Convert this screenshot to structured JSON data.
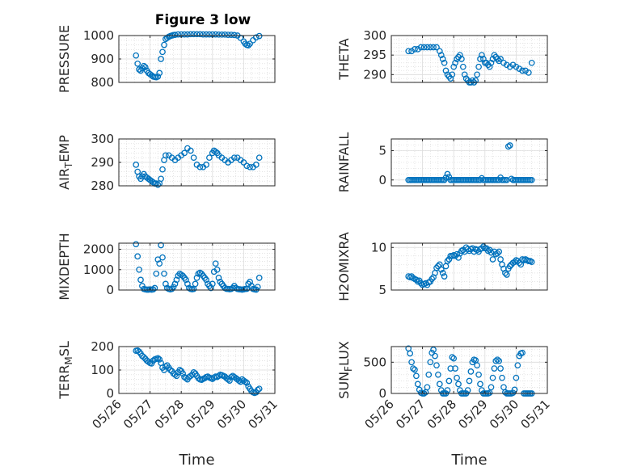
{
  "title": "Figure 3 low",
  "marker_color": "#0072BD",
  "chart_data": [
    {
      "type": "scatter",
      "marker": "circle-open",
      "ylabel": "PRESSURE",
      "ylim": [
        800,
        1000
      ],
      "yticks": [
        800,
        900,
        1000
      ],
      "xlim": [
        0,
        5
      ],
      "xticks": [
        "05/26",
        "05/27",
        "05/28",
        "05/29",
        "05/30",
        "05/31"
      ],
      "xlabel": "",
      "grid": true,
      "minor_grid": true,
      "x": [
        0.55,
        0.6,
        0.65,
        0.7,
        0.75,
        0.8,
        0.85,
        0.9,
        0.95,
        1.0,
        1.05,
        1.1,
        1.15,
        1.2,
        1.25,
        1.3,
        1.35,
        1.4,
        1.45,
        1.5,
        1.55,
        1.6,
        1.65,
        1.7,
        1.75,
        1.8,
        1.9,
        2.0,
        2.1,
        2.2,
        2.3,
        2.4,
        2.5,
        2.6,
        2.7,
        2.8,
        2.9,
        3.0,
        3.1,
        3.2,
        3.3,
        3.4,
        3.5,
        3.6,
        3.7,
        3.8,
        3.9,
        4.0,
        4.05,
        4.1,
        4.15,
        4.2,
        4.3,
        4.4,
        4.5
      ],
      "y": [
        915,
        880,
        855,
        850,
        860,
        870,
        865,
        850,
        840,
        835,
        830,
        825,
        823,
        822,
        825,
        840,
        900,
        930,
        960,
        985,
        990,
        995,
        998,
        1000,
        1002,
        1003,
        1005,
        1005,
        1005,
        1005,
        1006,
        1006,
        1006,
        1006,
        1005,
        1005,
        1005,
        1005,
        1005,
        1004,
        1004,
        1004,
        1003,
        1003,
        1002,
        1000,
        990,
        975,
        965,
        960,
        958,
        965,
        980,
        992,
        998
      ]
    },
    {
      "type": "scatter",
      "marker": "circle-open",
      "ylabel": "THETA",
      "ylim": [
        288,
        300
      ],
      "yticks": [
        290,
        295,
        300
      ],
      "xlim": [
        0,
        5
      ],
      "xticks": [
        "05/26",
        "05/27",
        "05/28",
        "05/29",
        "05/30",
        "05/31"
      ],
      "xlabel": "",
      "grid": true,
      "minor_grid": true,
      "x": [
        0.55,
        0.65,
        0.75,
        0.85,
        0.95,
        1.05,
        1.15,
        1.25,
        1.35,
        1.45,
        1.55,
        1.6,
        1.65,
        1.7,
        1.75,
        1.8,
        1.85,
        1.9,
        1.95,
        2.0,
        2.05,
        2.1,
        2.15,
        2.2,
        2.25,
        2.3,
        2.35,
        2.4,
        2.45,
        2.5,
        2.55,
        2.6,
        2.65,
        2.7,
        2.75,
        2.8,
        2.85,
        2.9,
        2.95,
        3.0,
        3.05,
        3.1,
        3.15,
        3.2,
        3.25,
        3.3,
        3.35,
        3.4,
        3.45,
        3.5,
        3.6,
        3.7,
        3.8,
        3.9,
        4.0,
        4.1,
        4.2,
        4.3,
        4.4,
        4.5
      ],
      "y": [
        296,
        296,
        296.5,
        296.5,
        297,
        297,
        297,
        297,
        297,
        297,
        296,
        295,
        294,
        293,
        291,
        290,
        289.5,
        289,
        290,
        292,
        293,
        294,
        294.5,
        295,
        294,
        292,
        290,
        289,
        288.5,
        288,
        288,
        288.5,
        288,
        288.5,
        290,
        292,
        294,
        295,
        294,
        293,
        293,
        292.5,
        292,
        293,
        294,
        295,
        294.5,
        294,
        293.5,
        294,
        293,
        292.5,
        292,
        292.5,
        292,
        291.5,
        291,
        291,
        290.5,
        293
      ]
    },
    {
      "type": "scatter",
      "marker": "circle-open",
      "ylabel": "AIR_T_EMP",
      "ylim": [
        280,
        300
      ],
      "yticks": [
        280,
        290,
        300
      ],
      "xlim": [
        0,
        5
      ],
      "xticks": [
        "05/26",
        "05/27",
        "05/28",
        "05/29",
        "05/30",
        "05/31"
      ],
      "xlabel": "",
      "grid": true,
      "minor_grid": true,
      "x": [
        0.55,
        0.6,
        0.65,
        0.7,
        0.75,
        0.8,
        0.85,
        0.9,
        0.95,
        1.0,
        1.05,
        1.1,
        1.15,
        1.2,
        1.25,
        1.3,
        1.35,
        1.4,
        1.45,
        1.5,
        1.6,
        1.7,
        1.8,
        1.9,
        2.0,
        2.1,
        2.2,
        2.3,
        2.4,
        2.5,
        2.6,
        2.7,
        2.8,
        2.9,
        3.0,
        3.05,
        3.1,
        3.15,
        3.2,
        3.3,
        3.4,
        3.5,
        3.6,
        3.7,
        3.8,
        3.9,
        4.0,
        4.1,
        4.2,
        4.3,
        4.4,
        4.5
      ],
      "y": [
        289,
        286,
        284,
        283,
        284,
        285,
        284,
        283.5,
        283,
        282.5,
        282,
        281.5,
        281,
        281,
        280.5,
        281,
        283,
        287,
        291,
        293,
        293,
        292,
        291,
        292,
        293,
        294,
        296,
        295,
        292,
        289,
        288,
        288,
        289,
        292,
        294,
        295,
        294.5,
        294,
        293,
        292,
        291,
        290,
        291,
        292,
        292,
        291,
        290,
        288.5,
        288,
        288,
        289,
        292
      ]
    },
    {
      "type": "scatter",
      "marker": "circle-open",
      "ylabel": "RAINFALL",
      "ylim": [
        -1,
        7
      ],
      "yticks": [
        0,
        5
      ],
      "xlim": [
        0,
        5
      ],
      "xticks": [
        "05/26",
        "05/27",
        "05/28",
        "05/29",
        "05/30",
        "05/31"
      ],
      "xlabel": "",
      "grid": true,
      "minor_grid": true,
      "x": [
        0.55,
        0.6,
        0.65,
        0.7,
        0.75,
        0.8,
        0.85,
        0.9,
        0.95,
        1.0,
        1.05,
        1.1,
        1.15,
        1.2,
        1.25,
        1.3,
        1.35,
        1.4,
        1.45,
        1.5,
        1.55,
        1.6,
        1.65,
        1.7,
        1.75,
        1.8,
        1.85,
        1.9,
        1.95,
        2.0,
        2.05,
        2.1,
        2.15,
        2.2,
        2.25,
        2.3,
        2.35,
        2.4,
        2.45,
        2.5,
        2.55,
        2.6,
        2.65,
        2.7,
        2.75,
        2.8,
        2.85,
        2.9,
        2.95,
        3.0,
        3.05,
        3.1,
        3.15,
        3.2,
        3.25,
        3.3,
        3.35,
        3.4,
        3.45,
        3.5,
        3.55,
        3.6,
        3.65,
        3.7,
        3.75,
        3.8,
        3.85,
        3.9,
        3.95,
        4.0,
        4.05,
        4.1,
        4.15,
        4.2,
        4.25,
        4.3,
        4.35,
        4.4,
        4.45,
        4.5
      ],
      "y": [
        0,
        0,
        0,
        0,
        0,
        0,
        0,
        0,
        0,
        0,
        0,
        0,
        0,
        0,
        0,
        0,
        0,
        0,
        0,
        0,
        0,
        0,
        0,
        0,
        0.4,
        1.0,
        0.5,
        0,
        0,
        0,
        0,
        0,
        0,
        0,
        0,
        0,
        0,
        0,
        0,
        0,
        0,
        0,
        0,
        0,
        0,
        0,
        0,
        0.3,
        0,
        0,
        0,
        0,
        0,
        0,
        0,
        0,
        0,
        0,
        0,
        0.4,
        0,
        0,
        0,
        0,
        5.7,
        5.9,
        0.2,
        0,
        0,
        0,
        0,
        0,
        0,
        0,
        0,
        0,
        0,
        0,
        0,
        0
      ]
    },
    {
      "type": "scatter",
      "marker": "circle-open",
      "ylabel": "MIXDEPTH",
      "ylim": [
        0,
        2300
      ],
      "yticks": [
        0,
        1000,
        2000
      ],
      "xlim": [
        0,
        5
      ],
      "xticks": [
        "05/26",
        "05/27",
        "05/28",
        "05/29",
        "05/30",
        "05/31"
      ],
      "xlabel": "",
      "grid": true,
      "minor_grid": true,
      "x": [
        0.55,
        0.6,
        0.65,
        0.7,
        0.75,
        0.8,
        0.85,
        0.9,
        0.95,
        1.0,
        1.05,
        1.1,
        1.15,
        1.2,
        1.25,
        1.3,
        1.35,
        1.4,
        1.45,
        1.5,
        1.55,
        1.6,
        1.65,
        1.7,
        1.75,
        1.8,
        1.85,
        1.9,
        1.95,
        2.0,
        2.05,
        2.1,
        2.15,
        2.2,
        2.25,
        2.3,
        2.35,
        2.4,
        2.45,
        2.5,
        2.55,
        2.6,
        2.65,
        2.7,
        2.75,
        2.8,
        2.85,
        2.9,
        2.95,
        3.0,
        3.05,
        3.1,
        3.15,
        3.2,
        3.25,
        3.3,
        3.35,
        3.4,
        3.45,
        3.5,
        3.55,
        3.6,
        3.65,
        3.7,
        3.75,
        3.8,
        3.85,
        3.9,
        3.95,
        4.0,
        4.05,
        4.1,
        4.15,
        4.2,
        4.25,
        4.3,
        4.35,
        4.4,
        4.45,
        4.5
      ],
      "y": [
        2250,
        1650,
        1000,
        500,
        200,
        50,
        30,
        20,
        20,
        30,
        20,
        30,
        100,
        800,
        1500,
        1300,
        2200,
        1600,
        800,
        300,
        100,
        50,
        30,
        50,
        150,
        300,
        500,
        700,
        800,
        750,
        700,
        600,
        500,
        300,
        100,
        50,
        40,
        50,
        300,
        600,
        800,
        850,
        800,
        700,
        600,
        500,
        300,
        200,
        100,
        300,
        900,
        1300,
        1000,
        600,
        400,
        300,
        200,
        100,
        60,
        50,
        40,
        50,
        100,
        200,
        100,
        50,
        40,
        30,
        20,
        30,
        50,
        60,
        300,
        400,
        200,
        50,
        30,
        20,
        150,
        600
      ]
    },
    {
      "type": "scatter",
      "marker": "circle-open",
      "ylabel": "H2OMIXRA",
      "ylim": [
        5,
        10.5
      ],
      "yticks": [
        5,
        10
      ],
      "xlim": [
        0,
        5
      ],
      "xticks": [
        "05/26",
        "05/27",
        "05/28",
        "05/29",
        "05/30",
        "05/31"
      ],
      "xlabel": "",
      "grid": true,
      "minor_grid": true,
      "x": [
        0.55,
        0.6,
        0.65,
        0.7,
        0.75,
        0.8,
        0.85,
        0.9,
        0.95,
        1.0,
        1.05,
        1.1,
        1.15,
        1.2,
        1.25,
        1.3,
        1.35,
        1.4,
        1.45,
        1.5,
        1.55,
        1.6,
        1.65,
        1.7,
        1.75,
        1.8,
        1.85,
        1.9,
        1.95,
        2.0,
        2.05,
        2.1,
        2.15,
        2.2,
        2.25,
        2.3,
        2.35,
        2.4,
        2.45,
        2.5,
        2.55,
        2.6,
        2.65,
        2.7,
        2.75,
        2.8,
        2.85,
        2.9,
        2.95,
        3.0,
        3.05,
        3.1,
        3.15,
        3.2,
        3.25,
        3.3,
        3.35,
        3.4,
        3.45,
        3.5,
        3.55,
        3.6,
        3.65,
        3.7,
        3.75,
        3.8,
        3.85,
        3.9,
        3.95,
        4.0,
        4.05,
        4.1,
        4.15,
        4.2,
        4.25,
        4.3,
        4.35,
        4.4,
        4.45,
        4.5
      ],
      "y": [
        6.6,
        6.5,
        6.6,
        6.4,
        6.3,
        6.2,
        6.0,
        6.1,
        5.8,
        5.6,
        5.7,
        5.8,
        5.6,
        5.9,
        6.0,
        6.3,
        6.5,
        7.0,
        7.6,
        7.8,
        8.0,
        7.4,
        7.0,
        6.6,
        7.8,
        8.4,
        8.6,
        9.0,
        9.0,
        9.1,
        9.0,
        9.2,
        8.8,
        9.3,
        9.6,
        9.7,
        9.5,
        10.0,
        9.8,
        9.6,
        9.8,
        9.9,
        9.5,
        9.8,
        9.7,
        9.5,
        9.8,
        9.9,
        10.1,
        9.9,
        9.9,
        9.6,
        9.7,
        9.4,
        8.6,
        9.5,
        9.2,
        9.3,
        9.5,
        8.6,
        8.0,
        7.5,
        7.0,
        6.8,
        7.5,
        7.8,
        8.0,
        8.2,
        8.3,
        8.5,
        8.4,
        8.2,
        8.0,
        8.6,
        8.5,
        8.6,
        8.5,
        8.4,
        8.4,
        8.3
      ]
    },
    {
      "type": "scatter",
      "marker": "circle-open",
      "ylabel": "TERR_M_SL",
      "ylim": [
        0,
        200
      ],
      "yticks": [
        0,
        100,
        200
      ],
      "xlim": [
        0,
        5
      ],
      "xticks": [
        "05/26",
        "05/27",
        "05/28",
        "05/29",
        "05/30",
        "05/31"
      ],
      "xlabel": "Time",
      "grid": true,
      "minor_grid": true,
      "x": [
        0.55,
        0.6,
        0.65,
        0.7,
        0.75,
        0.8,
        0.85,
        0.9,
        0.95,
        1.0,
        1.05,
        1.1,
        1.15,
        1.2,
        1.25,
        1.3,
        1.35,
        1.4,
        1.45,
        1.5,
        1.55,
        1.6,
        1.65,
        1.7,
        1.75,
        1.8,
        1.85,
        1.9,
        1.95,
        2.0,
        2.05,
        2.1,
        2.15,
        2.2,
        2.25,
        2.3,
        2.35,
        2.4,
        2.45,
        2.5,
        2.55,
        2.6,
        2.65,
        2.7,
        2.75,
        2.8,
        2.85,
        2.9,
        2.95,
        3.0,
        3.05,
        3.1,
        3.15,
        3.2,
        3.25,
        3.3,
        3.35,
        3.4,
        3.45,
        3.5,
        3.55,
        3.6,
        3.65,
        3.7,
        3.75,
        3.8,
        3.85,
        3.9,
        3.95,
        4.0,
        4.05,
        4.1,
        4.15,
        4.2,
        4.25,
        4.3,
        4.35,
        4.4,
        4.45,
        4.5
      ],
      "y": [
        182,
        183,
        178,
        170,
        160,
        155,
        148,
        140,
        135,
        130,
        128,
        140,
        145,
        148,
        150,
        145,
        130,
        110,
        100,
        115,
        120,
        110,
        100,
        95,
        85,
        80,
        75,
        90,
        100,
        95,
        85,
        70,
        65,
        60,
        70,
        75,
        80,
        90,
        85,
        75,
        65,
        60,
        58,
        62,
        65,
        70,
        72,
        68,
        65,
        62,
        68,
        72,
        70,
        75,
        80,
        78,
        75,
        72,
        65,
        60,
        55,
        70,
        75,
        70,
        65,
        60,
        55,
        50,
        60,
        55,
        50,
        45,
        30,
        20,
        10,
        5,
        2,
        5,
        15,
        20
      ]
    },
    {
      "type": "scatter",
      "marker": "circle-open",
      "ylabel": "SUN_F_LUX",
      "ylim": [
        0,
        750
      ],
      "yticks": [
        0,
        500
      ],
      "xlim": [
        0,
        5
      ],
      "xticks": [
        "05/26",
        "05/27",
        "05/28",
        "05/29",
        "05/30",
        "05/31"
      ],
      "xlabel": "Time",
      "grid": true,
      "minor_grid": true,
      "x": [
        0.55,
        0.6,
        0.65,
        0.7,
        0.75,
        0.8,
        0.85,
        0.9,
        0.95,
        1.0,
        1.05,
        1.1,
        1.15,
        1.2,
        1.25,
        1.3,
        1.35,
        1.4,
        1.45,
        1.5,
        1.55,
        1.6,
        1.65,
        1.7,
        1.75,
        1.8,
        1.85,
        1.9,
        1.95,
        2.0,
        2.05,
        2.1,
        2.15,
        2.2,
        2.25,
        2.3,
        2.35,
        2.4,
        2.45,
        2.5,
        2.55,
        2.6,
        2.65,
        2.7,
        2.75,
        2.8,
        2.85,
        2.9,
        2.95,
        3.0,
        3.05,
        3.1,
        3.15,
        3.2,
        3.25,
        3.3,
        3.35,
        3.4,
        3.45,
        3.5,
        3.55,
        3.6,
        3.65,
        3.7,
        3.75,
        3.8,
        3.85,
        3.9,
        3.95,
        4.0,
        4.05,
        4.1,
        4.15,
        4.2,
        4.25,
        4.3,
        4.35,
        4.4,
        4.45,
        4.5
      ],
      "y": [
        720,
        640,
        500,
        400,
        380,
        280,
        150,
        60,
        10,
        0,
        0,
        20,
        100,
        300,
        500,
        650,
        700,
        600,
        450,
        300,
        150,
        50,
        0,
        0,
        0,
        50,
        200,
        400,
        580,
        560,
        400,
        250,
        150,
        50,
        0,
        0,
        0,
        0,
        50,
        200,
        350,
        500,
        540,
        530,
        450,
        300,
        150,
        50,
        0,
        0,
        0,
        0,
        10,
        100,
        250,
        400,
        520,
        540,
        520,
        400,
        250,
        100,
        20,
        0,
        0,
        0,
        0,
        10,
        60,
        250,
        450,
        600,
        640,
        650,
        0,
        0,
        0,
        0,
        0,
        0
      ]
    }
  ]
}
